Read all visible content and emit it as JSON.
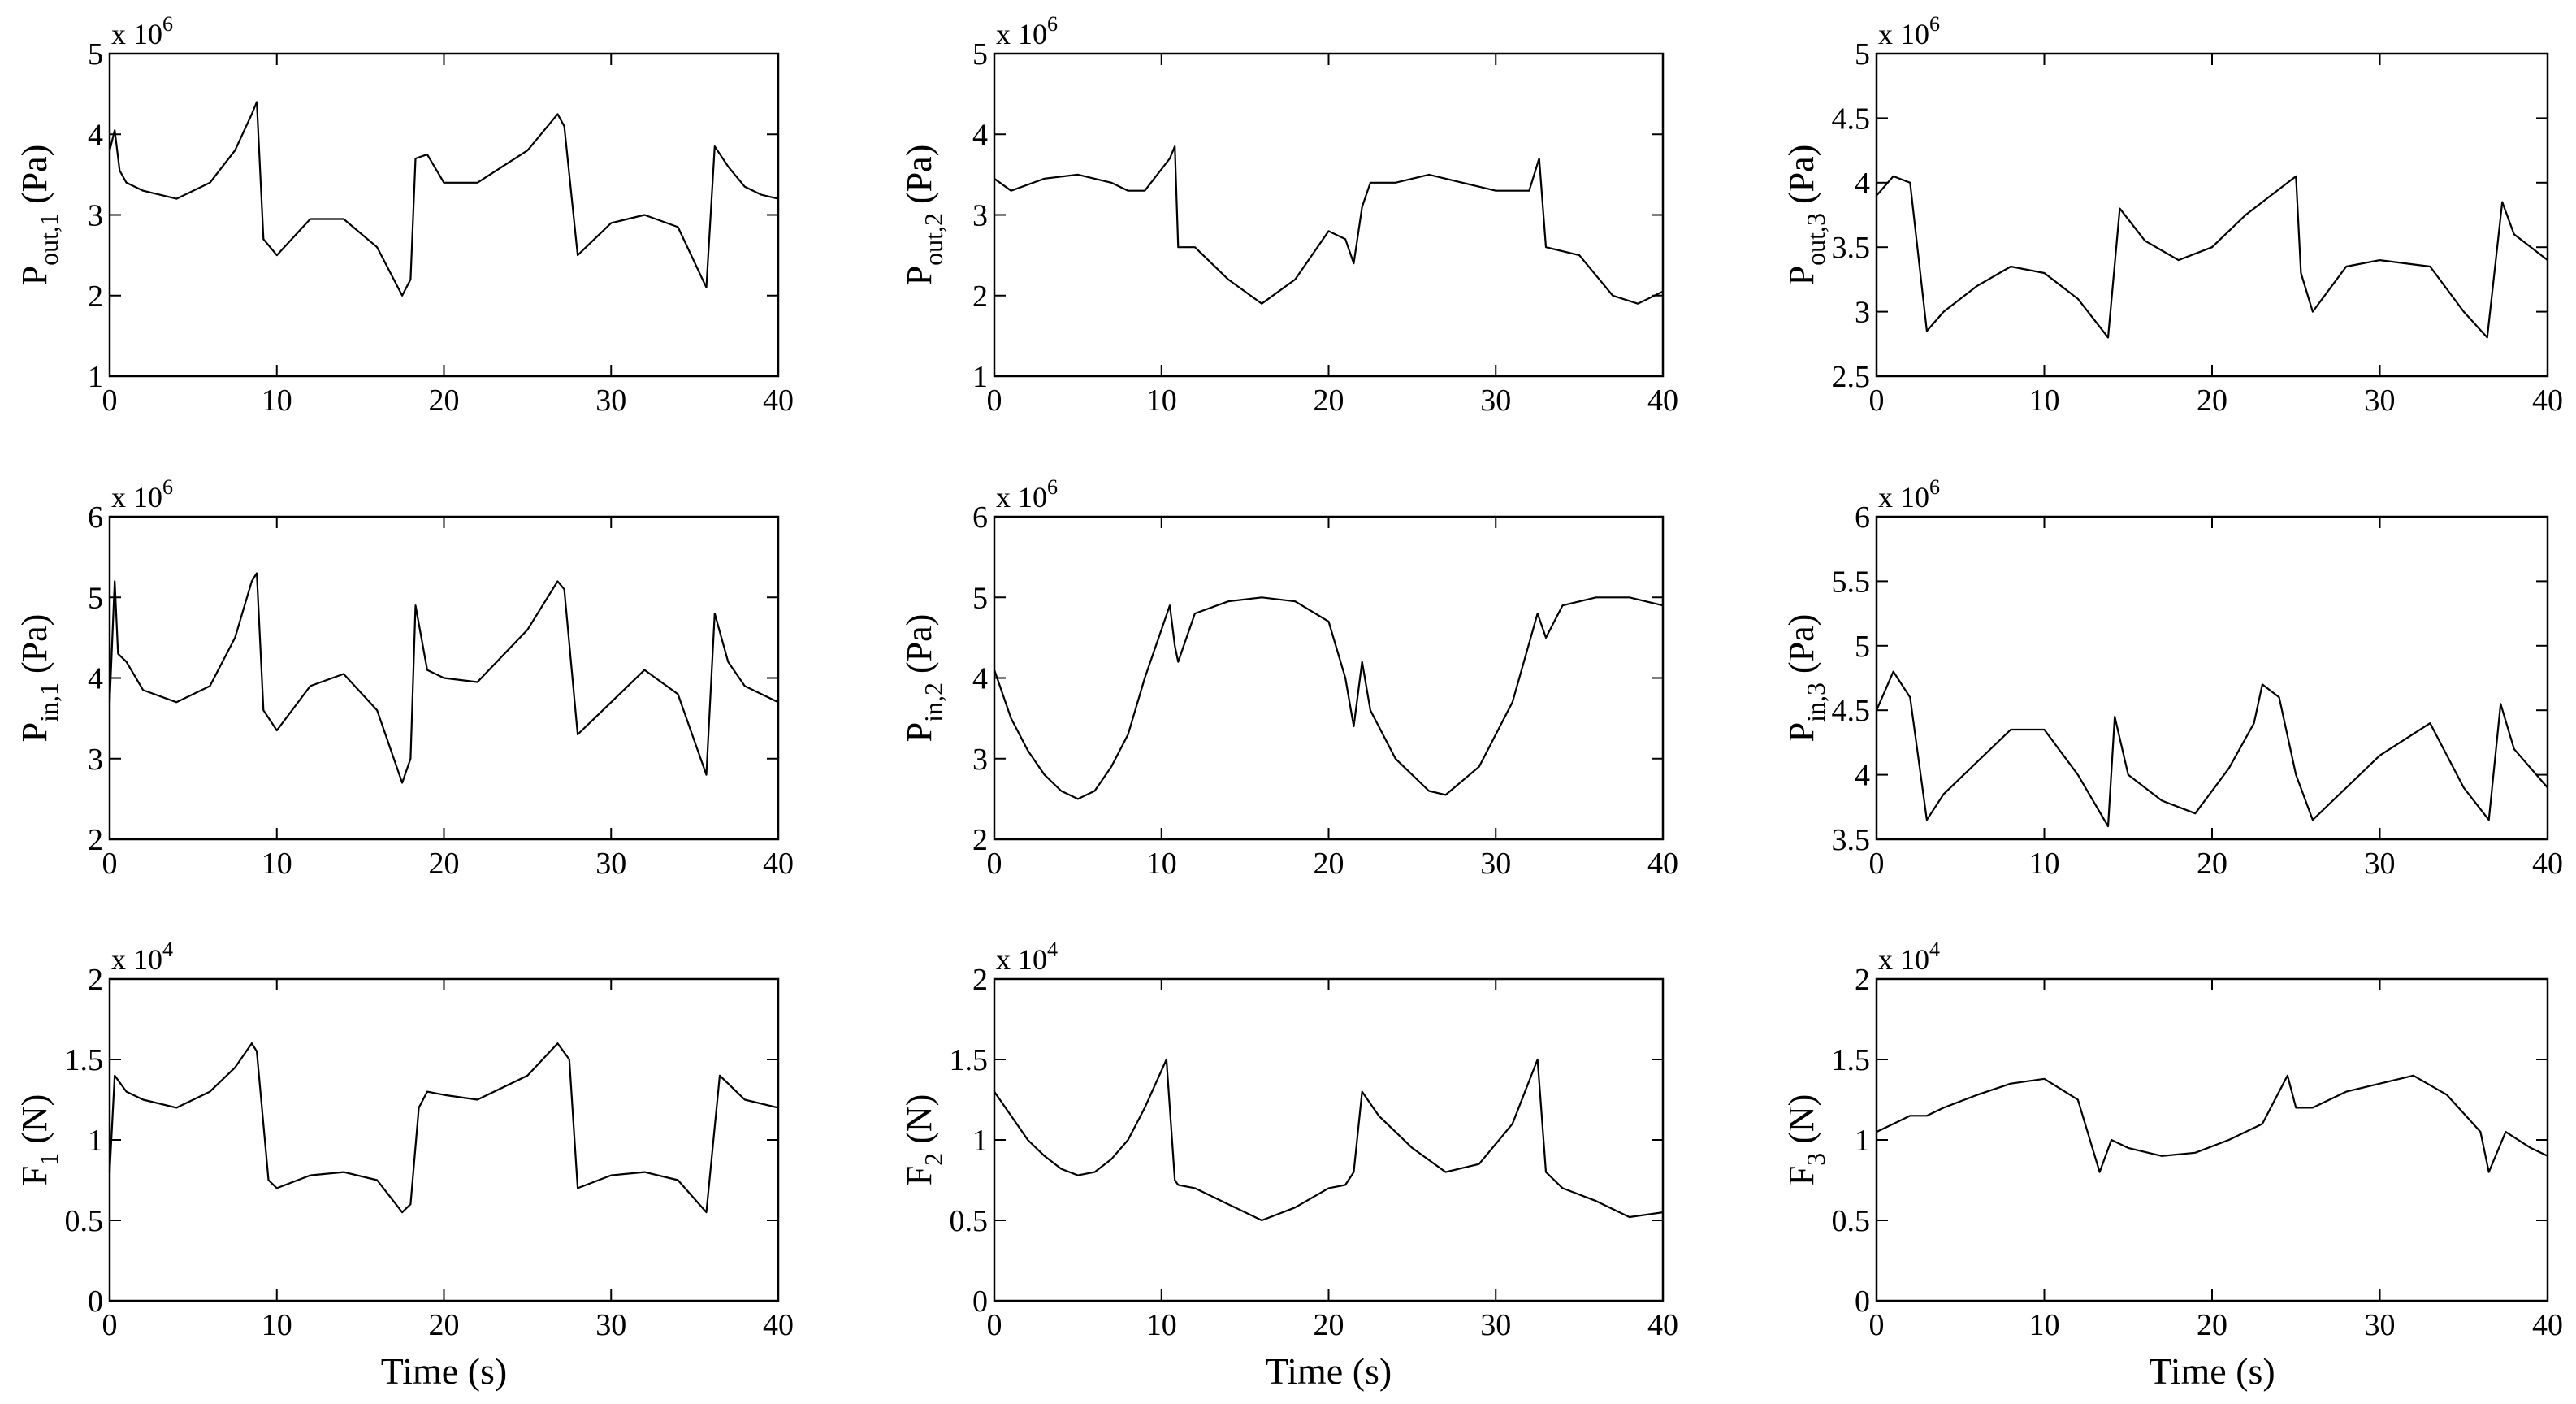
{
  "chart_data": [
    {
      "type": "line",
      "ylabel": {
        "main": "P",
        "sub": "out,1",
        "unit": "(Pa)"
      },
      "xlabel": "",
      "xlim": [
        0,
        40
      ],
      "ylim": [
        1,
        5
      ],
      "xticks": [
        "0",
        "10",
        "20",
        "30",
        "40"
      ],
      "yticks": [
        "1",
        "2",
        "3",
        "4",
        "5"
      ],
      "multiplier": {
        "base": "x 10",
        "exp": "6"
      },
      "series": [
        {
          "name": "P_out,1",
          "x": [
            0,
            0.3,
            0.6,
            1,
            2,
            4,
            6,
            7.5,
            8.5,
            8.8,
            9.2,
            10,
            12,
            14,
            16,
            17.5,
            18,
            18.3,
            19,
            20,
            22,
            25,
            26.8,
            27.2,
            28,
            30,
            32,
            34,
            35.7,
            36.2,
            37,
            38,
            39,
            40
          ],
          "y": [
            3.8,
            4.05,
            3.55,
            3.4,
            3.3,
            3.2,
            3.4,
            3.8,
            4.25,
            4.4,
            2.7,
            2.5,
            2.95,
            2.95,
            2.6,
            2.0,
            2.2,
            3.7,
            3.75,
            3.4,
            3.4,
            3.8,
            4.25,
            4.1,
            2.5,
            2.9,
            3.0,
            2.85,
            2.1,
            3.85,
            3.6,
            3.35,
            3.25,
            3.2
          ]
        }
      ]
    },
    {
      "type": "line",
      "ylabel": {
        "main": "P",
        "sub": "out,2",
        "unit": "(Pa)"
      },
      "xlabel": "",
      "xlim": [
        0,
        40
      ],
      "ylim": [
        1,
        5
      ],
      "xticks": [
        "0",
        "10",
        "20",
        "30",
        "40"
      ],
      "yticks": [
        "1",
        "2",
        "3",
        "4",
        "5"
      ],
      "multiplier": {
        "base": "x 10",
        "exp": "6"
      },
      "series": [
        {
          "name": "P_out,2",
          "x": [
            0,
            1,
            3,
            5,
            7,
            8,
            9,
            10.5,
            10.8,
            11,
            12,
            14,
            16,
            18,
            20,
            21,
            21.5,
            22,
            22.5,
            24,
            26,
            28,
            30,
            32,
            32.6,
            33,
            35,
            37,
            38.5,
            40
          ],
          "y": [
            3.45,
            3.3,
            3.45,
            3.5,
            3.4,
            3.3,
            3.3,
            3.7,
            3.85,
            2.6,
            2.6,
            2.2,
            1.9,
            2.2,
            2.8,
            2.7,
            2.4,
            3.1,
            3.4,
            3.4,
            3.5,
            3.4,
            3.3,
            3.3,
            3.7,
            2.6,
            2.5,
            2.0,
            1.9,
            2.05
          ]
        }
      ]
    },
    {
      "type": "line",
      "ylabel": {
        "main": "P",
        "sub": "out,3",
        "unit": "(Pa)"
      },
      "xlabel": "",
      "xlim": [
        0,
        40
      ],
      "ylim": [
        2.5,
        5
      ],
      "xticks": [
        "0",
        "10",
        "20",
        "30",
        "40"
      ],
      "yticks": [
        "2.5",
        "3",
        "3.5",
        "4",
        "4.5",
        "5"
      ],
      "multiplier": {
        "base": "x 10",
        "exp": "6"
      },
      "series": [
        {
          "name": "P_out,3",
          "x": [
            0,
            1,
            2,
            3,
            4,
            6,
            8,
            10,
            12,
            13.8,
            14.5,
            16,
            18,
            20,
            22,
            24,
            25,
            25.3,
            26,
            28,
            30,
            33,
            35,
            36.4,
            37.3,
            38,
            40
          ],
          "y": [
            3.9,
            4.05,
            4.0,
            2.85,
            3.0,
            3.2,
            3.35,
            3.3,
            3.1,
            2.8,
            3.8,
            3.55,
            3.4,
            3.5,
            3.75,
            3.95,
            4.05,
            3.3,
            3.0,
            3.35,
            3.4,
            3.35,
            3.0,
            2.8,
            3.85,
            3.6,
            3.4
          ]
        }
      ]
    },
    {
      "type": "line",
      "ylabel": {
        "main": "P",
        "sub": "in,1",
        "unit": "(Pa)"
      },
      "xlabel": "",
      "xlim": [
        0,
        40
      ],
      "ylim": [
        2,
        6
      ],
      "xticks": [
        "0",
        "10",
        "20",
        "30",
        "40"
      ],
      "yticks": [
        "2",
        "3",
        "4",
        "5",
        "6"
      ],
      "multiplier": {
        "base": "x 10",
        "exp": "6"
      },
      "series": [
        {
          "name": "P_in,1",
          "x": [
            0,
            0.3,
            0.5,
            1,
            2,
            4,
            6,
            7.5,
            8.5,
            8.8,
            9.2,
            10,
            12,
            14,
            16,
            17.5,
            18,
            18.3,
            19,
            20,
            22,
            25,
            26.8,
            27.2,
            28,
            30,
            32,
            34,
            35.7,
            36.2,
            37,
            38,
            39,
            40
          ],
          "y": [
            3.7,
            5.2,
            4.3,
            4.2,
            3.85,
            3.7,
            3.9,
            4.5,
            5.2,
            5.3,
            3.6,
            3.35,
            3.9,
            4.05,
            3.6,
            2.7,
            3.0,
            4.9,
            4.1,
            4.0,
            3.95,
            4.6,
            5.2,
            5.1,
            3.3,
            3.7,
            4.1,
            3.8,
            2.8,
            4.8,
            4.2,
            3.9,
            3.8,
            3.7
          ]
        }
      ]
    },
    {
      "type": "line",
      "ylabel": {
        "main": "P",
        "sub": "in,2",
        "unit": "(Pa)"
      },
      "xlabel": "",
      "xlim": [
        0,
        40
      ],
      "ylim": [
        2,
        6
      ],
      "xticks": [
        "0",
        "10",
        "20",
        "30",
        "40"
      ],
      "yticks": [
        "2",
        "3",
        "4",
        "5",
        "6"
      ],
      "multiplier": {
        "base": "x 10",
        "exp": "6"
      },
      "series": [
        {
          "name": "P_in,2",
          "x": [
            0,
            1,
            2,
            3,
            4,
            5,
            6,
            7,
            8,
            9,
            10.5,
            10.8,
            11,
            12,
            14,
            16,
            18,
            20,
            21,
            21.5,
            22,
            22.5,
            24,
            26,
            27,
            29,
            31,
            32.5,
            33,
            34,
            36,
            38,
            40
          ],
          "y": [
            4.1,
            3.5,
            3.1,
            2.8,
            2.6,
            2.5,
            2.6,
            2.9,
            3.3,
            4.0,
            4.9,
            4.4,
            4.2,
            4.8,
            4.95,
            5.0,
            4.95,
            4.7,
            4.0,
            3.4,
            4.2,
            3.6,
            3.0,
            2.6,
            2.55,
            2.9,
            3.7,
            4.8,
            4.5,
            4.9,
            5.0,
            5.0,
            4.9
          ]
        }
      ]
    },
    {
      "type": "line",
      "ylabel": {
        "main": "P",
        "sub": "in,3",
        "unit": "(Pa)"
      },
      "xlabel": "",
      "xlim": [
        0,
        40
      ],
      "ylim": [
        3.5,
        6
      ],
      "xticks": [
        "0",
        "10",
        "20",
        "30",
        "40"
      ],
      "yticks": [
        "3.5",
        "4",
        "4.5",
        "5",
        "5.5",
        "6"
      ],
      "multiplier": {
        "base": "x 10",
        "exp": "6"
      },
      "series": [
        {
          "name": "P_in,3",
          "x": [
            0,
            1,
            2,
            3,
            4,
            6,
            8,
            10,
            12,
            13.8,
            14.2,
            15,
            17,
            19,
            21,
            22.5,
            23,
            24,
            25,
            26,
            28,
            30,
            33,
            35,
            36.5,
            37.2,
            38,
            40
          ],
          "y": [
            4.5,
            4.8,
            4.6,
            3.65,
            3.85,
            4.1,
            4.35,
            4.35,
            4.0,
            3.6,
            4.45,
            4.0,
            3.8,
            3.7,
            4.05,
            4.4,
            4.7,
            4.6,
            4.0,
            3.65,
            3.9,
            4.15,
            4.4,
            3.9,
            3.65,
            4.55,
            4.2,
            3.9
          ]
        }
      ]
    },
    {
      "type": "line",
      "ylabel": {
        "main": "F",
        "sub": "1",
        "unit": "(N)"
      },
      "xlabel": "Time (s)",
      "xlim": [
        0,
        40
      ],
      "ylim": [
        0,
        2
      ],
      "xticks": [
        "0",
        "10",
        "20",
        "30",
        "40"
      ],
      "yticks": [
        "0",
        "0.5",
        "1",
        "1.5",
        "2"
      ],
      "multiplier": {
        "base": "x 10",
        "exp": "4"
      },
      "series": [
        {
          "name": "F_1",
          "x": [
            0,
            0.3,
            1,
            2,
            4,
            6,
            7.5,
            8.5,
            8.8,
            9.5,
            10,
            12,
            14,
            16,
            17.5,
            18,
            18.5,
            19,
            20,
            22,
            25,
            26.8,
            27.5,
            28,
            30,
            32,
            34,
            35.7,
            36.5,
            37,
            38,
            40
          ],
          "y": [
            0.8,
            1.4,
            1.3,
            1.25,
            1.2,
            1.3,
            1.45,
            1.6,
            1.55,
            0.75,
            0.7,
            0.78,
            0.8,
            0.75,
            0.55,
            0.6,
            1.2,
            1.3,
            1.28,
            1.25,
            1.4,
            1.6,
            1.5,
            0.7,
            0.78,
            0.8,
            0.75,
            0.55,
            1.4,
            1.35,
            1.25,
            1.2
          ]
        }
      ]
    },
    {
      "type": "line",
      "ylabel": {
        "main": "F",
        "sub": "2",
        "unit": "(N)"
      },
      "xlabel": "Time (s)",
      "xlim": [
        0,
        40
      ],
      "ylim": [
        0,
        2
      ],
      "xticks": [
        "0",
        "10",
        "20",
        "30",
        "40"
      ],
      "yticks": [
        "0",
        "0.5",
        "1",
        "1.5",
        "2"
      ],
      "multiplier": {
        "base": "x 10",
        "exp": "4"
      },
      "series": [
        {
          "name": "F_2",
          "x": [
            0,
            1,
            2,
            3,
            4,
            5,
            6,
            7,
            8,
            9,
            10.3,
            10.8,
            11,
            12,
            14,
            16,
            18,
            20,
            21,
            21.5,
            22,
            23,
            25,
            27,
            29,
            31,
            32.5,
            33,
            34,
            36,
            38,
            40
          ],
          "y": [
            1.3,
            1.15,
            1.0,
            0.9,
            0.82,
            0.78,
            0.8,
            0.88,
            1.0,
            1.2,
            1.5,
            0.75,
            0.72,
            0.7,
            0.6,
            0.5,
            0.58,
            0.7,
            0.72,
            0.8,
            1.3,
            1.15,
            0.95,
            0.8,
            0.85,
            1.1,
            1.5,
            0.8,
            0.7,
            0.62,
            0.52,
            0.55
          ]
        }
      ]
    },
    {
      "type": "line",
      "ylabel": {
        "main": "F",
        "sub": "3",
        "unit": "(N)"
      },
      "xlabel": "Time (s)",
      "xlim": [
        0,
        40
      ],
      "ylim": [
        0,
        2
      ],
      "xticks": [
        "0",
        "10",
        "20",
        "30",
        "40"
      ],
      "yticks": [
        "0",
        "0.5",
        "1",
        "1.5",
        "2"
      ],
      "multiplier": {
        "base": "x 10",
        "exp": "4"
      },
      "series": [
        {
          "name": "F_3",
          "x": [
            0,
            1,
            2,
            3,
            4,
            6,
            8,
            10,
            12,
            13.3,
            14,
            15,
            17,
            19,
            21,
            23,
            24.5,
            25,
            26,
            28,
            30,
            32,
            34,
            36,
            36.5,
            37.5,
            39,
            40
          ],
          "y": [
            1.05,
            1.1,
            1.15,
            1.15,
            1.2,
            1.28,
            1.35,
            1.38,
            1.25,
            0.8,
            1.0,
            0.95,
            0.9,
            0.92,
            1.0,
            1.1,
            1.4,
            1.2,
            1.2,
            1.3,
            1.35,
            1.4,
            1.28,
            1.05,
            0.8,
            1.05,
            0.95,
            0.9
          ]
        }
      ]
    }
  ]
}
